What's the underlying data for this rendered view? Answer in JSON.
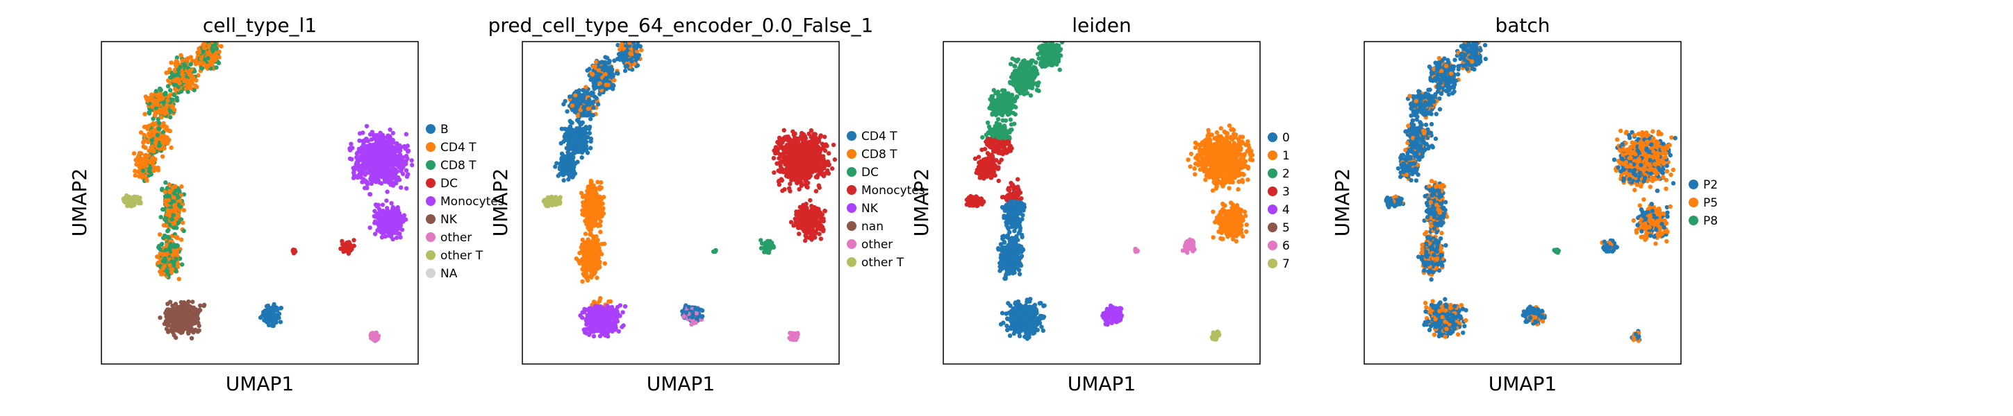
{
  "chart_data": [
    {
      "type": "scatter",
      "title": "cell_type_l1",
      "xlabel": "UMAP1",
      "ylabel": "UMAP2",
      "grid": false,
      "legend_placement": "right",
      "legend": [
        {
          "label": "B",
          "color": "#1f77b4"
        },
        {
          "label": "CD4 T",
          "color": "#ff7f0e"
        },
        {
          "label": "CD8 T",
          "color": "#279e68"
        },
        {
          "label": "DC",
          "color": "#d62728"
        },
        {
          "label": "Monocytes",
          "color": "#aa40fc"
        },
        {
          "label": "NK",
          "color": "#8c564b"
        },
        {
          "label": "other",
          "color": "#e377c2"
        },
        {
          "label": "other T",
          "color": "#b5bd61"
        },
        {
          "label": "NA",
          "color": "#d3d3d3"
        }
      ]
    },
    {
      "type": "scatter",
      "title": "pred_cell_type_64_encoder_0.0_False_1",
      "xlabel": "UMAP1",
      "ylabel": "UMAP2",
      "grid": false,
      "legend_placement": "right",
      "legend": [
        {
          "label": "CD4 T",
          "color": "#1f77b4"
        },
        {
          "label": "CD8 T",
          "color": "#ff7f0e"
        },
        {
          "label": "DC",
          "color": "#279e68"
        },
        {
          "label": "Monocytes",
          "color": "#d62728"
        },
        {
          "label": "NK",
          "color": "#aa40fc"
        },
        {
          "label": "nan",
          "color": "#8c564b"
        },
        {
          "label": "other",
          "color": "#e377c2"
        },
        {
          "label": "other T",
          "color": "#b5bd61"
        }
      ]
    },
    {
      "type": "scatter",
      "title": "leiden",
      "xlabel": "UMAP1",
      "ylabel": "UMAP2",
      "grid": false,
      "legend_placement": "right",
      "legend": [
        {
          "label": "0",
          "color": "#1f77b4"
        },
        {
          "label": "1",
          "color": "#ff7f0e"
        },
        {
          "label": "2",
          "color": "#279e68"
        },
        {
          "label": "3",
          "color": "#d62728"
        },
        {
          "label": "4",
          "color": "#aa40fc"
        },
        {
          "label": "5",
          "color": "#8c564b"
        },
        {
          "label": "6",
          "color": "#e377c2"
        },
        {
          "label": "7",
          "color": "#b5bd61"
        }
      ]
    },
    {
      "type": "scatter",
      "title": "batch",
      "xlabel": "UMAP1",
      "ylabel": "UMAP2",
      "grid": false,
      "legend_placement": "right",
      "legend": [
        {
          "label": "P2",
          "color": "#1f77b4"
        },
        {
          "label": "P5",
          "color": "#ff7f0e"
        },
        {
          "label": "P8",
          "color": "#279e68"
        }
      ]
    }
  ]
}
